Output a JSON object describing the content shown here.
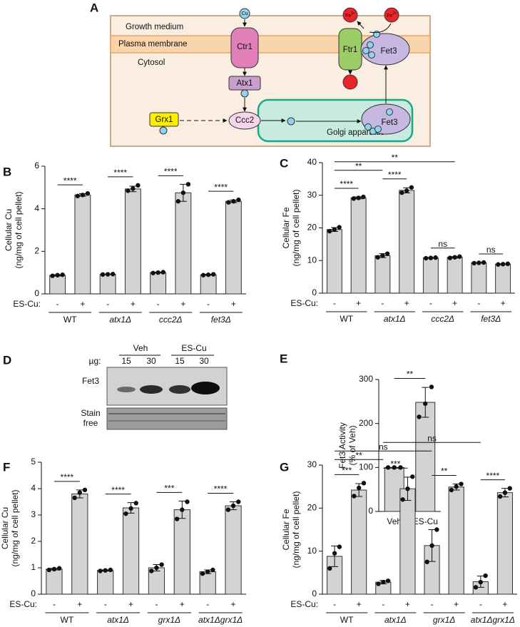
{
  "panel_a": {
    "label": "A",
    "growth_medium": "Growth medium",
    "plasma_membrane": "Plasma membrane",
    "cytosol": "Cytosol",
    "cu": "Cu",
    "ctr1": "Ctr1",
    "atx1": "Atx1",
    "ftr1": "Ftr1",
    "fe3": {
      "base": "Fe",
      "sup": "3+"
    },
    "fe2": {
      "base": "Fe",
      "sup": "2+"
    },
    "fet3_membrane": "Fet3",
    "fet3_golgi": "Fet3",
    "grx1": "Grx1",
    "ccc2": "Ccc2",
    "golgi": "Golgi apparatus"
  },
  "panel_d": {
    "label": "D",
    "groups": [
      "Veh",
      "ES-Cu"
    ],
    "amount_label": "µg:",
    "amounts": [
      "15",
      "30",
      "15",
      "30"
    ],
    "fet3": "Fet3",
    "stain": [
      "Stain",
      "free"
    ]
  },
  "chart_data": [
    {
      "type": "bar",
      "label": "B",
      "ylabel": [
        "Cellular Cu",
        "(ng/mg of cell pellet)"
      ],
      "row_label": "ES-Cu:",
      "categories": [
        "-",
        "+",
        "-",
        "+",
        "-",
        "+",
        "-",
        "+"
      ],
      "groups": [
        "WT",
        "atx1Δ",
        "ccc2Δ",
        "fet3Δ"
      ],
      "values": [
        0.87,
        4.65,
        0.92,
        4.93,
        1.0,
        4.75,
        0.9,
        4.35
      ],
      "errors": [
        0.03,
        0.06,
        0.01,
        0.13,
        0.02,
        0.4,
        0.02,
        0.06
      ],
      "points": [
        [
          0.85,
          0.88,
          0.9
        ],
        [
          4.6,
          4.65,
          4.72
        ],
        [
          0.91,
          0.92,
          0.93
        ],
        [
          4.85,
          4.95,
          5.1
        ],
        [
          0.98,
          1.0,
          1.02
        ],
        [
          4.35,
          4.75,
          5.15
        ],
        [
          0.88,
          0.9,
          0.92
        ],
        [
          4.3,
          4.35,
          4.42
        ]
      ],
      "annotations": [
        {
          "text": "****",
          "from": 0,
          "to": 1
        },
        {
          "text": "****",
          "from": 2,
          "to": 3
        },
        {
          "text": "****",
          "from": 4,
          "to": 5
        },
        {
          "text": "****",
          "from": 6,
          "to": 7
        }
      ],
      "ylim": [
        0,
        6
      ],
      "yticks": [
        0,
        2,
        4,
        6
      ],
      "color": "#d3d3d3"
    },
    {
      "type": "bar",
      "label": "C",
      "ylabel": [
        "Cellular Fe",
        "(ng/mg of cell pellet)"
      ],
      "row_label": "ES-Cu:",
      "categories": [
        "-",
        "+",
        "-",
        "+",
        "-",
        "+",
        "-",
        "+"
      ],
      "groups": [
        "WT",
        "atx1Δ",
        "ccc2Δ",
        "fet3Δ"
      ],
      "values": [
        19.5,
        29.2,
        11.5,
        31.5,
        10.8,
        11.0,
        9.3,
        8.9
      ],
      "errors": [
        0.6,
        0.3,
        0.6,
        0.8,
        0.1,
        0.2,
        0.1,
        0.1
      ],
      "points": [
        [
          19,
          19.5,
          20.2
        ],
        [
          29,
          29.2,
          29.5
        ],
        [
          11,
          11.5,
          12.1
        ],
        [
          30.8,
          31.4,
          32.4
        ],
        [
          10.7,
          10.8,
          10.9
        ],
        [
          10.8,
          11,
          11.2
        ],
        [
          9.2,
          9.3,
          9.4
        ],
        [
          8.8,
          8.9,
          9
        ]
      ],
      "annotations": [
        {
          "text": "****",
          "from": 0,
          "to": 1
        },
        {
          "text": "****",
          "from": 2,
          "to": 3
        },
        {
          "text": "ns",
          "from": 4,
          "to": 5
        },
        {
          "text": "ns",
          "from": 6,
          "to": 7
        },
        {
          "text": "**",
          "from": 0,
          "to": 2
        },
        {
          "text": "**",
          "from": 0,
          "to": 5
        }
      ],
      "ylim": [
        0,
        40
      ],
      "yticks": [
        0,
        10,
        20,
        30,
        40
      ],
      "color": "#d3d3d3"
    },
    {
      "type": "bar",
      "label": "E",
      "ylabel": [
        "Fet3 Activity",
        "(% of Veh)"
      ],
      "categories": [
        "Veh",
        "ES-Cu"
      ],
      "values": [
        100,
        248
      ],
      "errors": [
        0,
        34
      ],
      "points": [
        [
          100,
          100,
          100
        ],
        [
          215,
          245,
          283
        ]
      ],
      "annotations": [
        {
          "text": "**",
          "from": 0,
          "to": 1
        }
      ],
      "ylim": [
        0,
        300
      ],
      "yticks": [
        0,
        100,
        200,
        300
      ],
      "color": "#d3d3d3"
    },
    {
      "type": "bar",
      "label": "F",
      "ylabel": [
        "Cellular Cu",
        "(ng/mg of cell pellet)"
      ],
      "row_label": "ES-Cu:",
      "categories": [
        "-",
        "+",
        "-",
        "+",
        "-",
        "+",
        "-",
        "+"
      ],
      "groups": [
        "WT",
        "atx1Δ",
        "grx1Δ",
        "atx1Δgrx1Δ"
      ],
      "values": [
        0.95,
        3.8,
        0.9,
        3.27,
        1.0,
        3.2,
        0.85,
        3.35
      ],
      "errors": [
        0.03,
        0.15,
        0.02,
        0.2,
        0.12,
        0.33,
        0.07,
        0.15
      ],
      "points": [
        [
          0.92,
          0.95,
          0.98
        ],
        [
          3.65,
          3.85,
          3.95
        ],
        [
          0.88,
          0.9,
          0.92
        ],
        [
          3.05,
          3.25,
          3.45
        ],
        [
          0.88,
          1.0,
          1.12
        ],
        [
          2.85,
          3.2,
          3.5
        ],
        [
          0.78,
          0.85,
          0.92
        ],
        [
          3.2,
          3.35,
          3.5
        ]
      ],
      "annotations": [
        {
          "text": "****",
          "from": 0,
          "to": 1
        },
        {
          "text": "****",
          "from": 2,
          "to": 3
        },
        {
          "text": "***",
          "from": 4,
          "to": 5
        },
        {
          "text": "****",
          "from": 6,
          "to": 7
        }
      ],
      "ylim": [
        0,
        5
      ],
      "yticks": [
        0,
        1,
        2,
        3,
        4,
        5
      ],
      "color": "#d3d3d3"
    },
    {
      "type": "bar",
      "label": "G",
      "ylabel": [
        "Cellular Fe",
        "(ng/mg of cell pellet)"
      ],
      "row_label": "ES-Cu:",
      "categories": [
        "-",
        "+",
        "-",
        "+",
        "-",
        "+",
        "-",
        "+"
      ],
      "groups": [
        "WT",
        "atx1Δ",
        "grx1Δ",
        "atx1Δgrx1Δ"
      ],
      "values": [
        8.8,
        24.2,
        2.8,
        24.5,
        11.3,
        24.9,
        2.9,
        23.6
      ],
      "errors": [
        2.4,
        1.5,
        0.4,
        2.7,
        3.7,
        0.7,
        1.3,
        1.0
      ],
      "points": [
        [
          6,
          9.5,
          11
        ],
        [
          22.8,
          24.7,
          25.8
        ],
        [
          2.4,
          2.8,
          3.1
        ],
        [
          22,
          24.5,
          27.3
        ],
        [
          7.5,
          11.3,
          15
        ],
        [
          24.2,
          25,
          25.6
        ],
        [
          1.6,
          2.8,
          4.3
        ],
        [
          22.7,
          23.6,
          24.6
        ]
      ],
      "annotations": [
        {
          "text": "***",
          "from": 0,
          "to": 1
        },
        {
          "text": "***",
          "from": 2,
          "to": 3
        },
        {
          "text": "**",
          "from": 4,
          "to": 5
        },
        {
          "text": "****",
          "from": 6,
          "to": 7
        },
        {
          "text": "**",
          "from": 0,
          "to": 2
        },
        {
          "text": "ns",
          "from": 0,
          "to": 4
        },
        {
          "text": "ns",
          "from": 2,
          "to": 6
        }
      ],
      "ylim": [
        0,
        30
      ],
      "yticks": [
        0,
        10,
        20,
        30
      ],
      "color": "#d3d3d3"
    }
  ]
}
